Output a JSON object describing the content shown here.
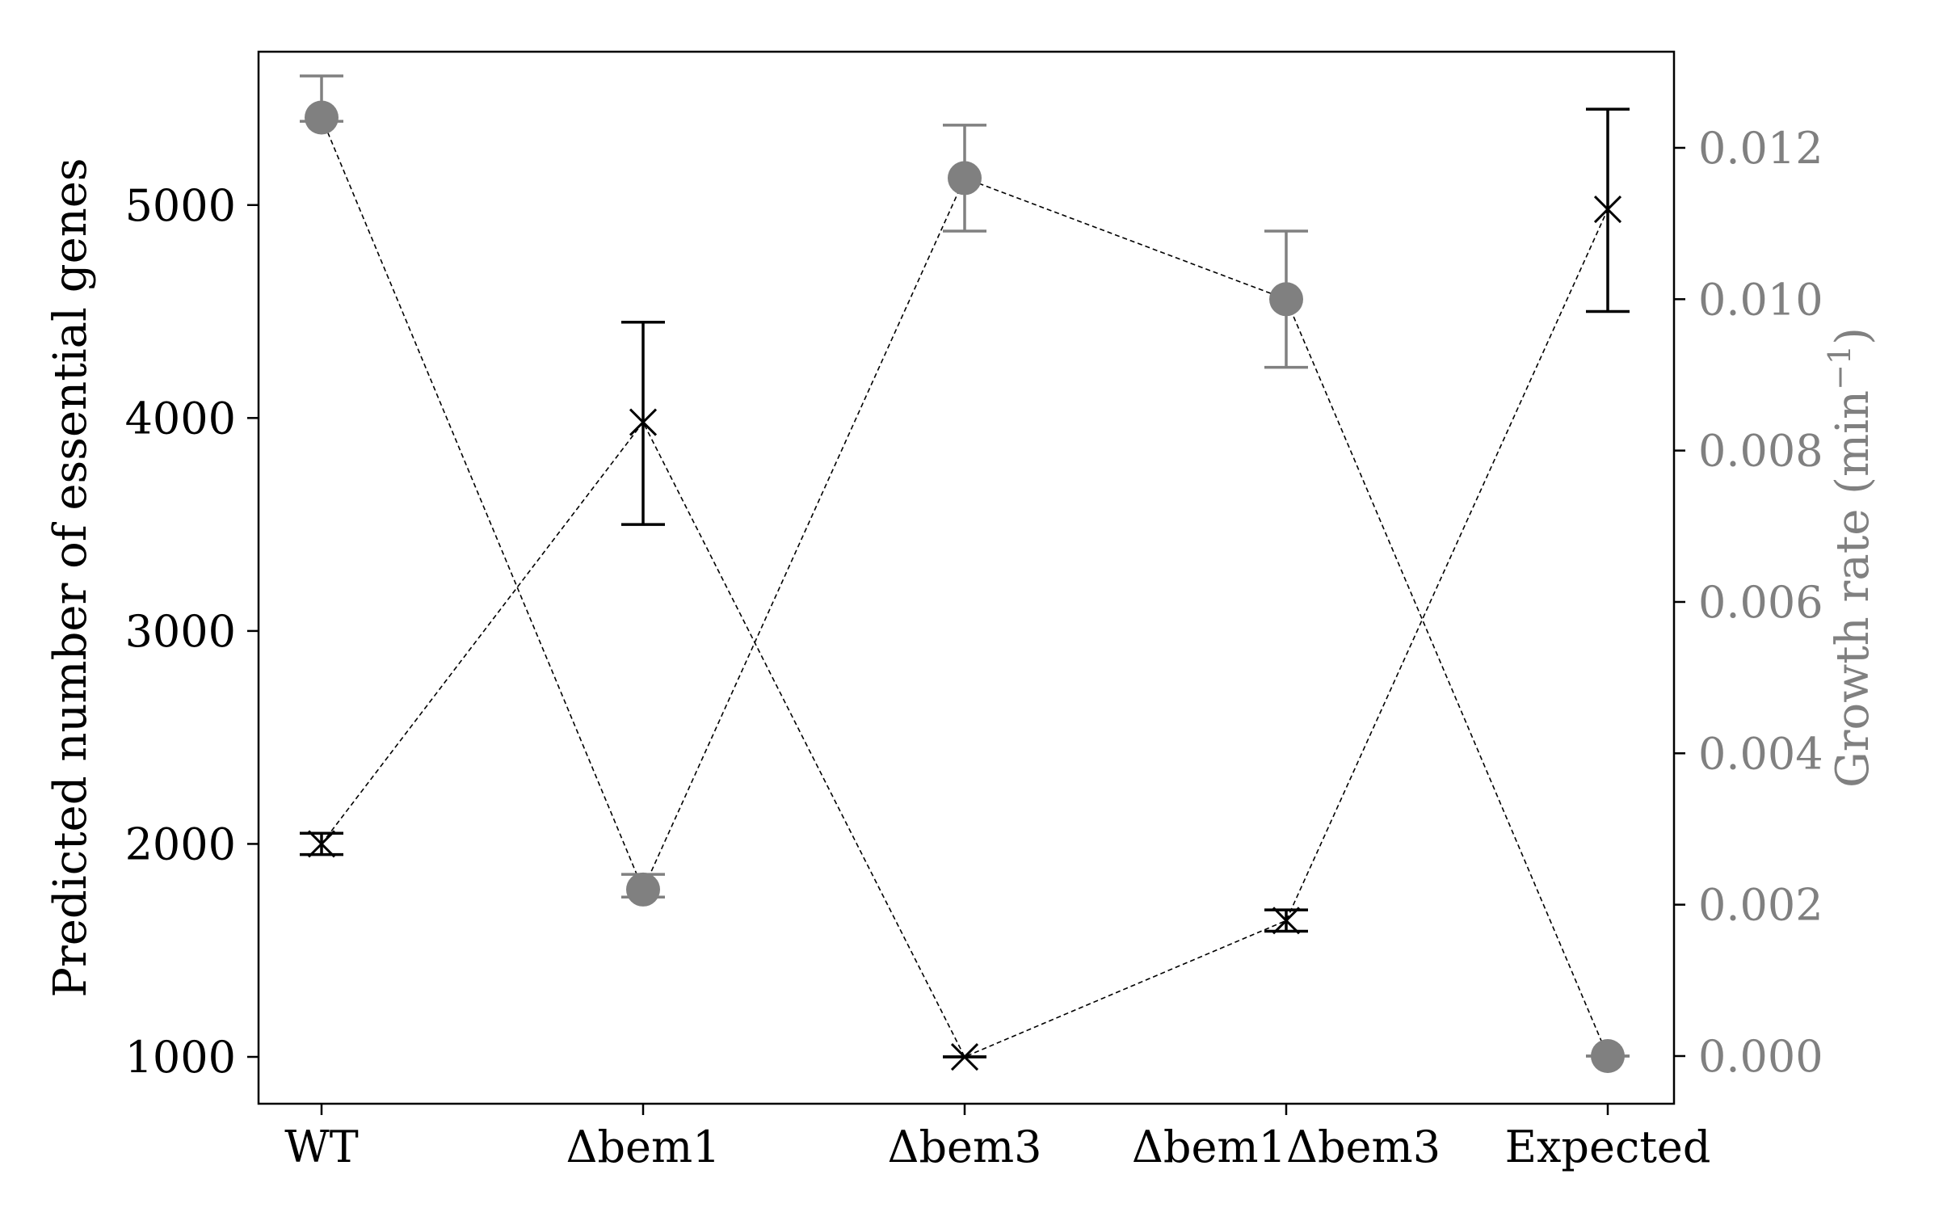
{
  "chart_data": {
    "type": "scatter",
    "categories": [
      "WT",
      "Δbem1",
      "Δbem3",
      "Δbem1Δbem3",
      "Expected"
    ],
    "left_axis": {
      "label": "Predicted number of essential genes",
      "ylim": [
        780,
        5720
      ],
      "ticks": [
        1000,
        2000,
        3000,
        4000,
        5000
      ],
      "tick_labels": [
        "1000",
        "2000",
        "3000",
        "4000",
        "5000"
      ],
      "color": "#000000"
    },
    "right_axis": {
      "label": "Growth rate (min",
      "label_sup": "−1",
      "label_end": ")",
      "ylim": [
        -0.00063,
        0.01327
      ],
      "ticks": [
        0.0,
        0.002,
        0.004,
        0.006,
        0.008,
        0.01,
        0.012
      ],
      "tick_labels": [
        "0.000",
        "0.002",
        "0.004",
        "0.006",
        "0.008",
        "0.010",
        "0.012"
      ],
      "color": "#808080"
    },
    "series": [
      {
        "name": "Predicted essential genes",
        "axis": "left",
        "marker": "x",
        "color": "#000000",
        "values": [
          2000,
          3980,
          1000,
          1640,
          4980
        ],
        "err_low": [
          1950,
          3500,
          1000,
          1590,
          4500
        ],
        "err_high": [
          2050,
          4450,
          1000,
          1690,
          5450
        ]
      },
      {
        "name": "Growth rate",
        "axis": "right",
        "marker": "circle",
        "color": "#808080",
        "values": [
          0.0124,
          0.0022,
          0.0116,
          0.01,
          0.0
        ],
        "err_low": [
          0.01235,
          0.0021,
          0.0109,
          0.0091,
          0.0
        ],
        "err_high": [
          0.01295,
          0.0024,
          0.0123,
          0.0109,
          0.0
        ]
      }
    ]
  }
}
